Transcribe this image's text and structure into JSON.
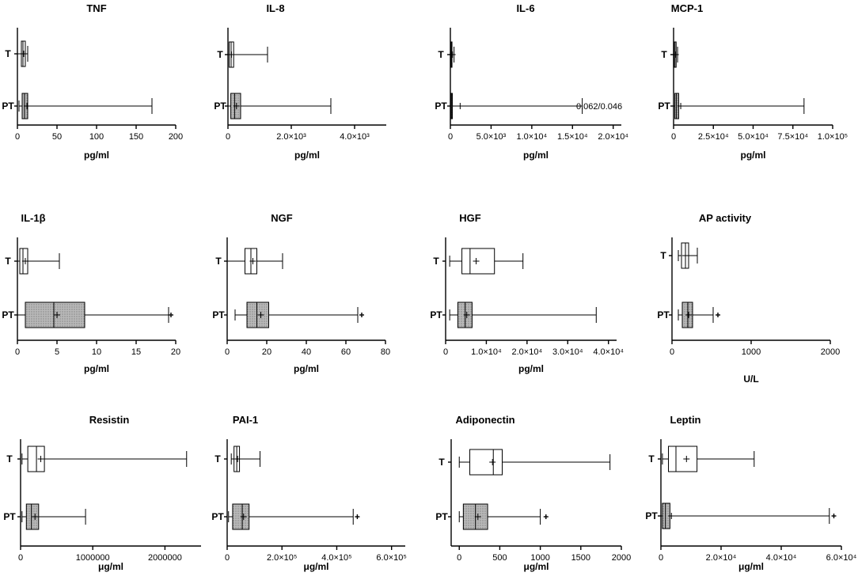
{
  "chart_data": [
    {
      "type": "box",
      "title": "TNF",
      "xlabel": "pg/ml",
      "xlim": [
        0,
        200
      ],
      "ticks": [
        0,
        50,
        100,
        150,
        200
      ],
      "tick_labels": [
        "0",
        "50",
        "100",
        "150",
        "200"
      ],
      "boxes": [
        {
          "category": "T",
          "min": 0,
          "q1": 5,
          "median": 7,
          "q3": 10,
          "max": 13,
          "mean": 8,
          "outliers": []
        },
        {
          "category": "PT",
          "min": 2,
          "q1": 6,
          "median": 9,
          "q3": 13,
          "max": 170,
          "mean": 12,
          "outliers": []
        }
      ]
    },
    {
      "type": "box",
      "title": "IL-8",
      "xlabel": "pg/ml",
      "xlim": [
        0,
        5000
      ],
      "ticks": [
        0,
        2000,
        4000
      ],
      "tick_labels": [
        "0",
        "2.0×10³",
        "4.0×10³"
      ],
      "boxes": [
        {
          "category": "T",
          "min": 0,
          "q1": 40,
          "median": 100,
          "q3": 180,
          "max": 1250,
          "mean": 110,
          "outliers": []
        },
        {
          "category": "PT",
          "min": 0,
          "q1": 90,
          "median": 210,
          "q3": 400,
          "max": 3250,
          "mean": 270,
          "outliers": []
        }
      ]
    },
    {
      "type": "box",
      "title": "IL-6",
      "xlabel": "pg/ml",
      "xlim": [
        0,
        21000
      ],
      "ticks": [
        0,
        5000,
        10000,
        15000,
        20000
      ],
      "tick_labels": [
        "0",
        "5.0×10³",
        "1.0×10⁴",
        "1.5×10⁴",
        "2.0×10⁴"
      ],
      "annotation": "0.062/0.046",
      "boxes": [
        {
          "category": "T",
          "min": 0,
          "q1": 40,
          "median": 100,
          "q3": 200,
          "max": 450,
          "mean": 260,
          "outliers": []
        },
        {
          "category": "PT",
          "min": 0,
          "q1": 40,
          "median": 130,
          "q3": 250,
          "max": 16200,
          "mean": 1200,
          "outliers": []
        }
      ]
    },
    {
      "type": "box",
      "title": "MCP-1",
      "xlabel": "pg/ml",
      "xlim": [
        0,
        100000
      ],
      "ticks": [
        0,
        25000,
        50000,
        75000,
        100000
      ],
      "tick_labels": [
        "0",
        "2.5×10⁴",
        "5.0×10⁴",
        "7.5×10⁴",
        "1.0×10⁵"
      ],
      "boxes": [
        {
          "category": "T",
          "min": 0,
          "q1": 300,
          "median": 900,
          "q3": 1600,
          "max": 2500,
          "mean": 1300,
          "outliers": []
        },
        {
          "category": "PT",
          "min": 0,
          "q1": 800,
          "median": 1800,
          "q3": 3200,
          "max": 82000,
          "mean": 4500,
          "outliers": []
        }
      ]
    },
    {
      "type": "box",
      "title": "IL-1β",
      "xlabel": "pg/ml",
      "xlim": [
        0,
        20
      ],
      "ticks": [
        0,
        5,
        10,
        15,
        20
      ],
      "tick_labels": [
        "0",
        "5",
        "10",
        "15",
        "20"
      ],
      "boxes": [
        {
          "category": "T",
          "min": 0,
          "q1": 0.3,
          "median": 0.7,
          "q3": 1.3,
          "max": 5.3,
          "mean": 1.0,
          "outliers": []
        },
        {
          "category": "PT",
          "min": 0,
          "q1": 1.0,
          "median": 4.6,
          "q3": 8.5,
          "max": 19.1,
          "mean": 5.0,
          "outliers": [
            19.4
          ]
        }
      ]
    },
    {
      "type": "box",
      "title": "NGF",
      "xlabel": "pg/ml",
      "xlim": [
        0,
        80
      ],
      "ticks": [
        0,
        20,
        40,
        60,
        80
      ],
      "tick_labels": [
        "0",
        "20",
        "40",
        "60",
        "80"
      ],
      "boxes": [
        {
          "category": "T",
          "min": 0,
          "q1": 9,
          "median": 12,
          "q3": 15,
          "max": 28,
          "mean": 13,
          "outliers": []
        },
        {
          "category": "PT",
          "min": 4,
          "q1": 10,
          "median": 15,
          "q3": 21,
          "max": 66,
          "mean": 17,
          "outliers": [
            68
          ]
        }
      ]
    },
    {
      "type": "box",
      "title": "HGF",
      "xlabel": "pg/ml",
      "xlim": [
        0,
        42000
      ],
      "ticks": [
        0,
        10000,
        20000,
        30000,
        40000
      ],
      "tick_labels": [
        "0",
        "1.0×10⁴",
        "2.0×10⁴",
        "3.0×10⁴",
        "4.0×10⁴"
      ],
      "boxes": [
        {
          "category": "T",
          "min": 1000,
          "q1": 4000,
          "median": 6000,
          "q3": 12000,
          "max": 19000,
          "mean": 7500,
          "outliers": []
        },
        {
          "category": "PT",
          "min": 1000,
          "q1": 3000,
          "median": 4800,
          "q3": 6500,
          "max": 37000,
          "mean": 5200,
          "outliers": []
        }
      ]
    },
    {
      "type": "box",
      "title": "AP activity",
      "xlabel": "U/L",
      "xlim": [
        0,
        2000
      ],
      "ticks": [
        0,
        1000,
        2000
      ],
      "tick_labels": [
        "0",
        "1000",
        "2000"
      ],
      "boxes": [
        {
          "category": "T",
          "min": 80,
          "q1": 120,
          "median": 170,
          "q3": 210,
          "max": 320,
          "mean": 170,
          "outliers": []
        },
        {
          "category": "PT",
          "min": 80,
          "q1": 130,
          "median": 200,
          "q3": 260,
          "max": 520,
          "mean": 210,
          "outliers": [
            580
          ]
        }
      ]
    },
    {
      "type": "box",
      "title": "Resistin",
      "xlabel": "μg/ml",
      "xlim": [
        0,
        2500000
      ],
      "ticks": [
        0,
        1000000,
        2000000
      ],
      "tick_labels": [
        "0",
        "1000000",
        "2000000"
      ],
      "boxes": [
        {
          "category": "T",
          "min": 20000,
          "q1": 100000,
          "median": 220000,
          "q3": 330000,
          "max": 2300000,
          "mean": 280000,
          "outliers": []
        },
        {
          "category": "PT",
          "min": 20000,
          "q1": 80000,
          "median": 150000,
          "q3": 250000,
          "max": 900000,
          "mean": 200000,
          "outliers": []
        }
      ]
    },
    {
      "type": "box",
      "title": "PAI-1",
      "xlabel": "μg/ml",
      "xlim": [
        0,
        650000
      ],
      "ticks": [
        0,
        200000,
        400000,
        600000
      ],
      "tick_labels": [
        "0",
        "2.0×10⁵",
        "4.0×10⁵",
        "6.0×10⁵"
      ],
      "boxes": [
        {
          "category": "T",
          "min": 15000,
          "q1": 25000,
          "median": 35000,
          "q3": 45000,
          "max": 120000,
          "mean": 38000,
          "outliers": []
        },
        {
          "category": "PT",
          "min": 5000,
          "q1": 20000,
          "median": 55000,
          "q3": 80000,
          "max": 460000,
          "mean": 60000,
          "outliers": [
            475000
          ]
        }
      ]
    },
    {
      "type": "box",
      "title": "Adiponectin",
      "xlabel": "μg/ml",
      "xlim": [
        -100,
        2000
      ],
      "ticks": [
        0,
        500,
        1000,
        1500,
        2000
      ],
      "tick_labels": [
        "0",
        "500",
        "1000",
        "1500",
        "2000"
      ],
      "boxes": [
        {
          "category": "T",
          "min": 0,
          "q1": 130,
          "median": 420,
          "q3": 530,
          "max": 1860,
          "mean": 410,
          "outliers": []
        },
        {
          "category": "PT",
          "min": 0,
          "q1": 50,
          "median": 200,
          "q3": 350,
          "max": 1000,
          "mean": 230,
          "outliers": [
            1070
          ]
        }
      ]
    },
    {
      "type": "box",
      "title": "Leptin",
      "xlabel": "μg/ml",
      "xlim": [
        0,
        60000
      ],
      "ticks": [
        0,
        20000,
        40000,
        60000
      ],
      "tick_labels": [
        "0",
        "2.0×10⁴",
        "4.0×10⁴",
        "6.0×10⁴"
      ],
      "boxes": [
        {
          "category": "T",
          "min": 500,
          "q1": 2500,
          "median": 5000,
          "q3": 12000,
          "max": 31000,
          "mean": 8500,
          "outliers": []
        },
        {
          "category": "PT",
          "min": 0,
          "q1": 500,
          "median": 1500,
          "q3": 3000,
          "max": 56000,
          "mean": 3500,
          "outliers": [
            57500
          ]
        }
      ]
    }
  ]
}
